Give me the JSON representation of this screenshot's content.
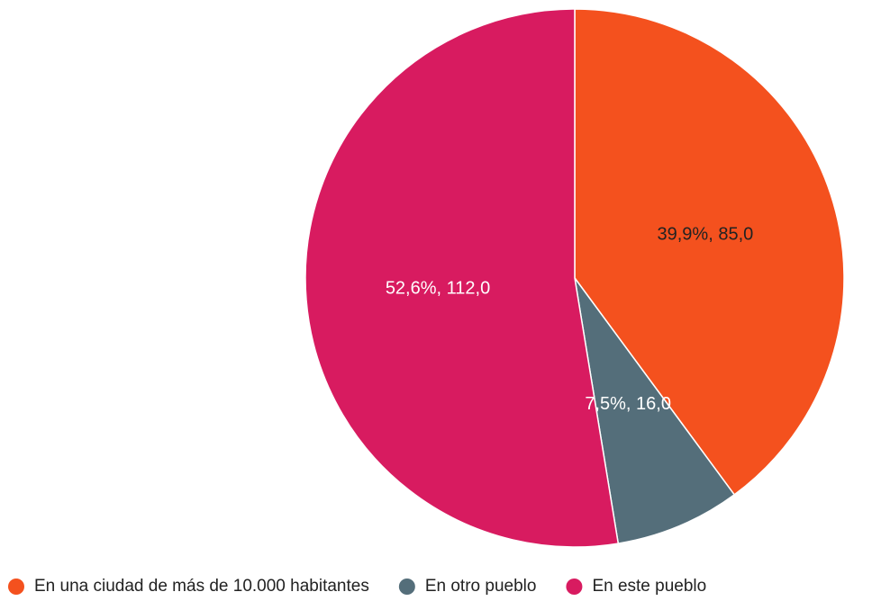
{
  "chart_data": {
    "type": "pie",
    "categories": [
      "En una ciudad de más de 10.000 habitantes",
      "En otro pueblo",
      "En este pueblo"
    ],
    "values": [
      85,
      16,
      112
    ],
    "value_labels": [
      "39,9%, 85,0",
      "7,5%, 16,0",
      "52,6%, 112,0"
    ],
    "colors": [
      "#f4511e",
      "#546e7a",
      "#d81b60"
    ],
    "legend": "bottom"
  }
}
